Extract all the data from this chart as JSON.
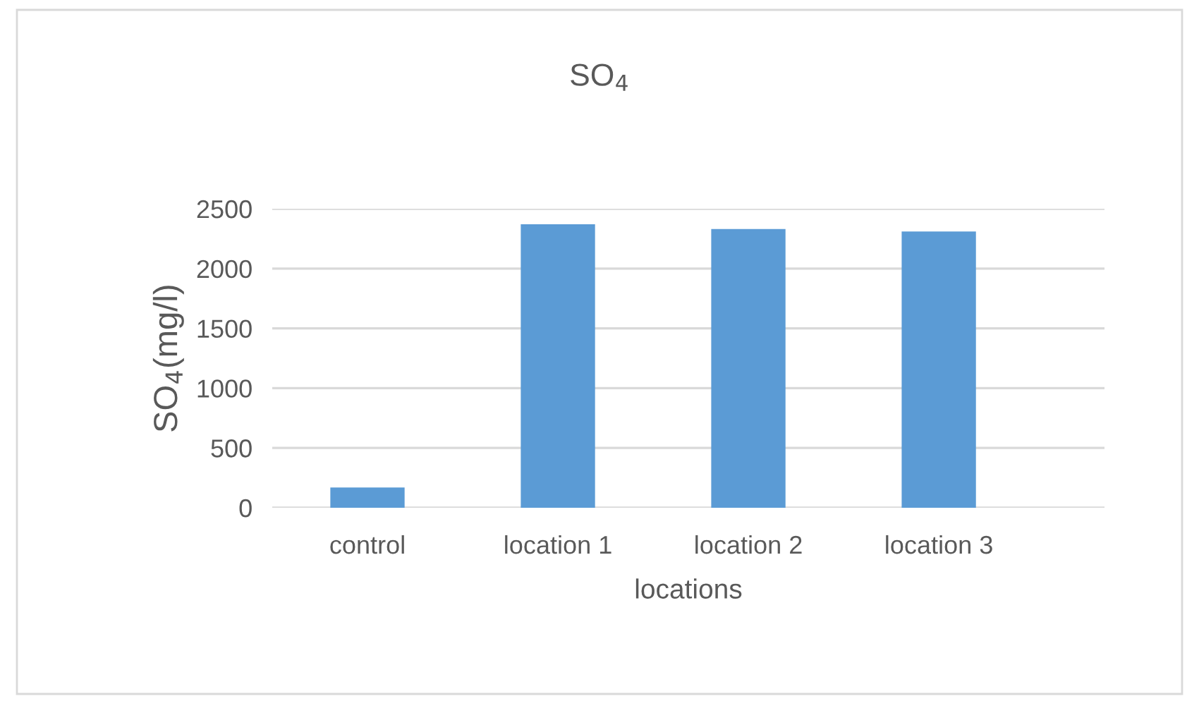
{
  "chart_data": {
    "type": "bar",
    "title": "SO$_{4}$",
    "xlabel": "locations",
    "ylabel": "SO$_{4}$(mg/l)",
    "categories": [
      "control",
      "location 1",
      "location 2",
      "location 3"
    ],
    "values": [
      170,
      2370,
      2330,
      2310
    ],
    "color": "#5b9bd5",
    "ylim": [
      0,
      2500
    ],
    "yticks": [
      0,
      500,
      1000,
      1500,
      2000,
      2500
    ],
    "grid": "y"
  }
}
